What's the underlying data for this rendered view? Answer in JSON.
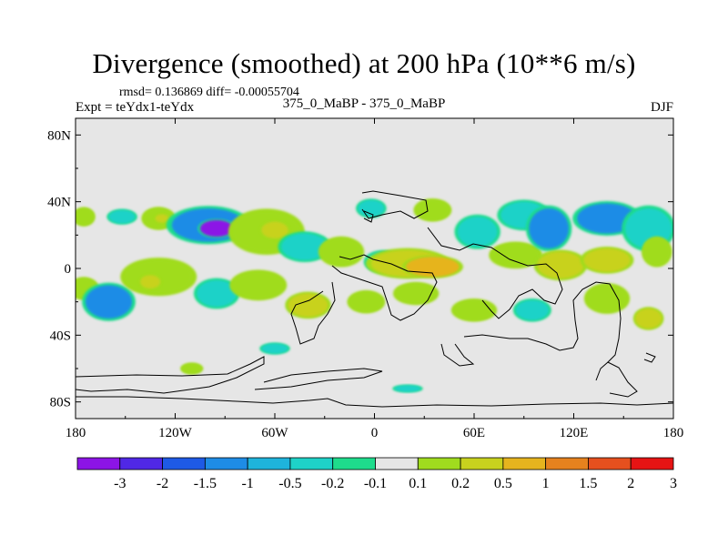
{
  "chart_data": {
    "type": "heatmap",
    "title": "Divergence (smoothed) at 200 hPa (10**6 m/s)",
    "stats": "rmsd= 0.136869 diff= -0.00055704",
    "experiment": "Expt = teYdx1-teYdx",
    "subtitle": "375_0_MaBP - 375_0_MaBP",
    "season": "DJF",
    "x_range": [
      -180,
      180
    ],
    "y_range": [
      -90,
      90
    ],
    "x_ticks": [
      {
        "value": -180,
        "label": "180"
      },
      {
        "value": -120,
        "label": "120W"
      },
      {
        "value": -60,
        "label": "60W"
      },
      {
        "value": 0,
        "label": "0"
      },
      {
        "value": 60,
        "label": "60E"
      },
      {
        "value": 120,
        "label": "120E"
      },
      {
        "value": 180,
        "label": "180"
      }
    ],
    "y_ticks": [
      {
        "value": 80,
        "label": "80N"
      },
      {
        "value": 40,
        "label": "40N"
      },
      {
        "value": 0,
        "label": "0"
      },
      {
        "value": -40,
        "label": "40S"
      },
      {
        "value": -80,
        "label": "80S"
      }
    ],
    "colorbar": {
      "labels": [
        "-3",
        "-2",
        "-1.5",
        "-1",
        "-0.5",
        "-0.2",
        "-0.1",
        "0.1",
        "0.2",
        "0.5",
        "1",
        "1.5",
        "2",
        "3"
      ],
      "colors": [
        "#8c14e6",
        "#5028e6",
        "#1e5ae6",
        "#1e8ce6",
        "#1eb4dc",
        "#1ed2c8",
        "#1edc8c",
        "#e6e6e6",
        "#a0dc1e",
        "#c8d21e",
        "#e6b41e",
        "#e6821e",
        "#e6501e",
        "#e61414"
      ]
    },
    "field_patches": [
      {
        "lon": -175,
        "lat": 31,
        "rlon": 6,
        "rlat": 5,
        "level": 1
      },
      {
        "lon": -152,
        "lat": 31,
        "rlon": 8,
        "rlat": 4,
        "level": -1
      },
      {
        "lon": -130,
        "lat": 30,
        "rlon": 9,
        "rlat": 6,
        "level": 1
      },
      {
        "lon": -128,
        "lat": 30,
        "rlon": 4,
        "rlat": 2.5,
        "level": 2
      },
      {
        "lon": -100,
        "lat": 26,
        "rlon": 22,
        "rlat": 10,
        "level": -2
      },
      {
        "lon": -95,
        "lat": 24,
        "rlon": 10,
        "rlat": 5,
        "level": -3
      },
      {
        "lon": -65,
        "lat": 22,
        "rlon": 20,
        "rlat": 12,
        "level": 1
      },
      {
        "lon": -60,
        "lat": 23,
        "rlon": 8,
        "rlat": 5,
        "level": 2
      },
      {
        "lon": -42,
        "lat": 13,
        "rlon": 14,
        "rlat": 8,
        "level": -1
      },
      {
        "lon": -20,
        "lat": 10,
        "rlon": 12,
        "rlat": 8,
        "level": 1
      },
      {
        "lon": -2,
        "lat": 36,
        "rlon": 8,
        "rlat": 5,
        "level": -1
      },
      {
        "lon": 5,
        "lat": 4,
        "rlon": 10,
        "rlat": 6,
        "level": -1
      },
      {
        "lon": 20,
        "lat": 3,
        "rlon": 22,
        "rlat": 8,
        "level": 2
      },
      {
        "lon": 35,
        "lat": 1,
        "rlon": 16,
        "rlat": 6,
        "level": 3
      },
      {
        "lon": 35,
        "lat": 35,
        "rlon": 10,
        "rlat": 6,
        "level": 1
      },
      {
        "lon": 62,
        "lat": 22,
        "rlon": 12,
        "rlat": 9,
        "level": -1
      },
      {
        "lon": 85,
        "lat": 8,
        "rlon": 14,
        "rlat": 7,
        "level": 1
      },
      {
        "lon": 90,
        "lat": 32,
        "rlon": 14,
        "rlat": 8,
        "level": -1
      },
      {
        "lon": 105,
        "lat": 24,
        "rlon": 12,
        "rlat": 12,
        "level": -2
      },
      {
        "lon": 112,
        "lat": 2,
        "rlon": 14,
        "rlat": 8,
        "level": 2
      },
      {
        "lon": 140,
        "lat": 5,
        "rlon": 14,
        "rlat": 7,
        "level": 2
      },
      {
        "lon": 140,
        "lat": 30,
        "rlon": 18,
        "rlat": 9,
        "level": -2
      },
      {
        "lon": 165,
        "lat": 24,
        "rlon": 14,
        "rlat": 12,
        "level": -1
      },
      {
        "lon": 170,
        "lat": 10,
        "rlon": 8,
        "rlat": 8,
        "level": 1
      },
      {
        "lon": -175,
        "lat": -12,
        "rlon": 8,
        "rlat": 6,
        "level": 1
      },
      {
        "lon": -160,
        "lat": -20,
        "rlon": 14,
        "rlat": 10,
        "level": -2
      },
      {
        "lon": -130,
        "lat": -5,
        "rlon": 20,
        "rlat": 10,
        "level": 1
      },
      {
        "lon": -135,
        "lat": -8,
        "rlon": 6,
        "rlat": 4,
        "level": 2
      },
      {
        "lon": -95,
        "lat": -15,
        "rlon": 12,
        "rlat": 8,
        "level": -1
      },
      {
        "lon": -70,
        "lat": -10,
        "rlon": 15,
        "rlat": 8,
        "level": 1
      },
      {
        "lon": -40,
        "lat": -22,
        "rlon": 12,
        "rlat": 7,
        "level": 2
      },
      {
        "lon": -5,
        "lat": -20,
        "rlon": 10,
        "rlat": 6,
        "level": 1
      },
      {
        "lon": 25,
        "lat": -15,
        "rlon": 12,
        "rlat": 6,
        "level": 1
      },
      {
        "lon": 60,
        "lat": -25,
        "rlon": 12,
        "rlat": 6,
        "level": 1
      },
      {
        "lon": 95,
        "lat": -25,
        "rlon": 10,
        "rlat": 6,
        "level": -1
      },
      {
        "lon": 140,
        "lat": -18,
        "rlon": 12,
        "rlat": 8,
        "level": 1
      },
      {
        "lon": 165,
        "lat": -30,
        "rlon": 8,
        "rlat": 6,
        "level": 2
      },
      {
        "lon": -60,
        "lat": -48,
        "rlon": 8,
        "rlat": 3,
        "level": -1
      },
      {
        "lon": -110,
        "lat": -60,
        "rlon": 6,
        "rlat": 3,
        "level": 1
      },
      {
        "lon": 20,
        "lat": -72,
        "rlon": 8,
        "rlat": 2,
        "level": -1
      }
    ]
  }
}
